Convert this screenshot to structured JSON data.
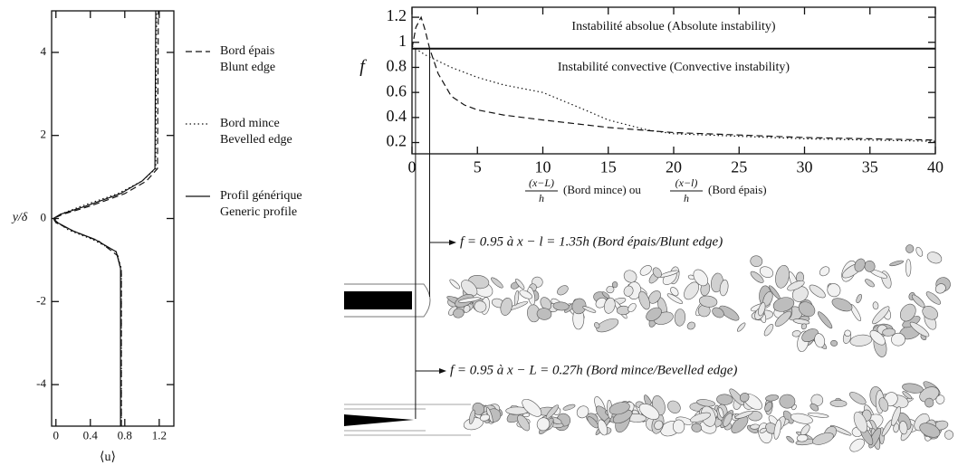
{
  "chart_data": [
    {
      "type": "line",
      "x_label": "⟨u⟩",
      "y_label": "y/δ",
      "xlim": [
        -0.05,
        1.37
      ],
      "ylim": [
        -5,
        5
      ],
      "xticks": [
        0,
        0.4,
        0.8,
        1.2
      ],
      "yticks": [
        -4,
        -2,
        0,
        2,
        4
      ],
      "series": [
        {
          "name": "Bord épais",
          "subname": "Blunt edge",
          "style": "dashed",
          "color": "#111",
          "x": [
            0.76,
            0.76,
            0.72,
            0.5,
            0.2,
            0.0,
            -0.03,
            0.08,
            0.4,
            0.8,
            1.05,
            1.18,
            1.19
          ],
          "values": [
            -5,
            -1.3,
            -0.9,
            -0.55,
            -0.3,
            -0.1,
            0,
            0.1,
            0.3,
            0.6,
            0.9,
            1.2,
            5
          ]
        },
        {
          "name": "Bord mince",
          "subname": "Bevelled edge",
          "style": "dotted",
          "color": "#111",
          "x": [
            0.76,
            0.76,
            0.7,
            0.42,
            0.15,
            0.02,
            -0.01,
            0.05,
            0.3,
            0.72,
            1.0,
            1.16,
            1.17
          ],
          "values": [
            -5,
            -1.2,
            -0.8,
            -0.5,
            -0.28,
            -0.1,
            0,
            0.1,
            0.3,
            0.6,
            0.9,
            1.2,
            5
          ]
        },
        {
          "name": "Profil générique",
          "subname": "Generic profile",
          "style": "solid",
          "color": "#111",
          "x": [
            0.75,
            0.75,
            0.7,
            0.45,
            0.2,
            0.02,
            -0.03,
            0.05,
            0.35,
            0.75,
            1.0,
            1.15,
            1.16
          ],
          "values": [
            -5,
            -1.2,
            -0.8,
            -0.5,
            -0.3,
            -0.1,
            0,
            0.1,
            0.3,
            0.6,
            0.9,
            1.2,
            5
          ]
        }
      ]
    },
    {
      "type": "line",
      "y_label": "f",
      "x_label_parts": [
        "(x−L)",
        "h",
        "(Bord mince) ou",
        "(x−l)",
        "h",
        "(Bord épais)"
      ],
      "xlim": [
        0,
        40
      ],
      "ylim": [
        0.11,
        1.28
      ],
      "xticks": [
        0,
        5,
        10,
        15,
        20,
        25,
        30,
        35,
        40
      ],
      "yticks": [
        0.2,
        0.4,
        0.6,
        0.8,
        1,
        1.2
      ],
      "threshold": 0.95,
      "region_labels": [
        "Instabilité absolue (Absolute instability)",
        "Instabilité convective (Convective instability)"
      ],
      "series": [
        {
          "style": "dashed",
          "color": "#111",
          "x": [
            0,
            0.3,
            0.7,
            1.0,
            1.35,
            2,
            3,
            4,
            5,
            7,
            10,
            15,
            20,
            25,
            30,
            35,
            40
          ],
          "values": [
            0.95,
            1.12,
            1.2,
            1.1,
            0.95,
            0.75,
            0.57,
            0.5,
            0.46,
            0.42,
            0.38,
            0.32,
            0.28,
            0.26,
            0.24,
            0.23,
            0.22
          ]
        },
        {
          "style": "dotted",
          "color": "#111",
          "x": [
            0,
            0.27,
            1,
            2,
            3,
            5,
            7,
            10,
            13,
            15,
            18,
            20,
            25,
            30,
            35,
            40
          ],
          "values": [
            0.97,
            0.95,
            0.9,
            0.85,
            0.8,
            0.72,
            0.66,
            0.6,
            0.47,
            0.38,
            0.3,
            0.27,
            0.25,
            0.23,
            0.22,
            0.21
          ]
        }
      ],
      "markers": [
        {
          "x": 1.35,
          "label": "f = 0.95 à x − l = 1.35h (Bord épais/Blunt edge)"
        },
        {
          "x": 0.27,
          "label": "f = 0.95 à x − L = 0.27h (Bord mince/Bevelled edge)"
        }
      ]
    }
  ]
}
